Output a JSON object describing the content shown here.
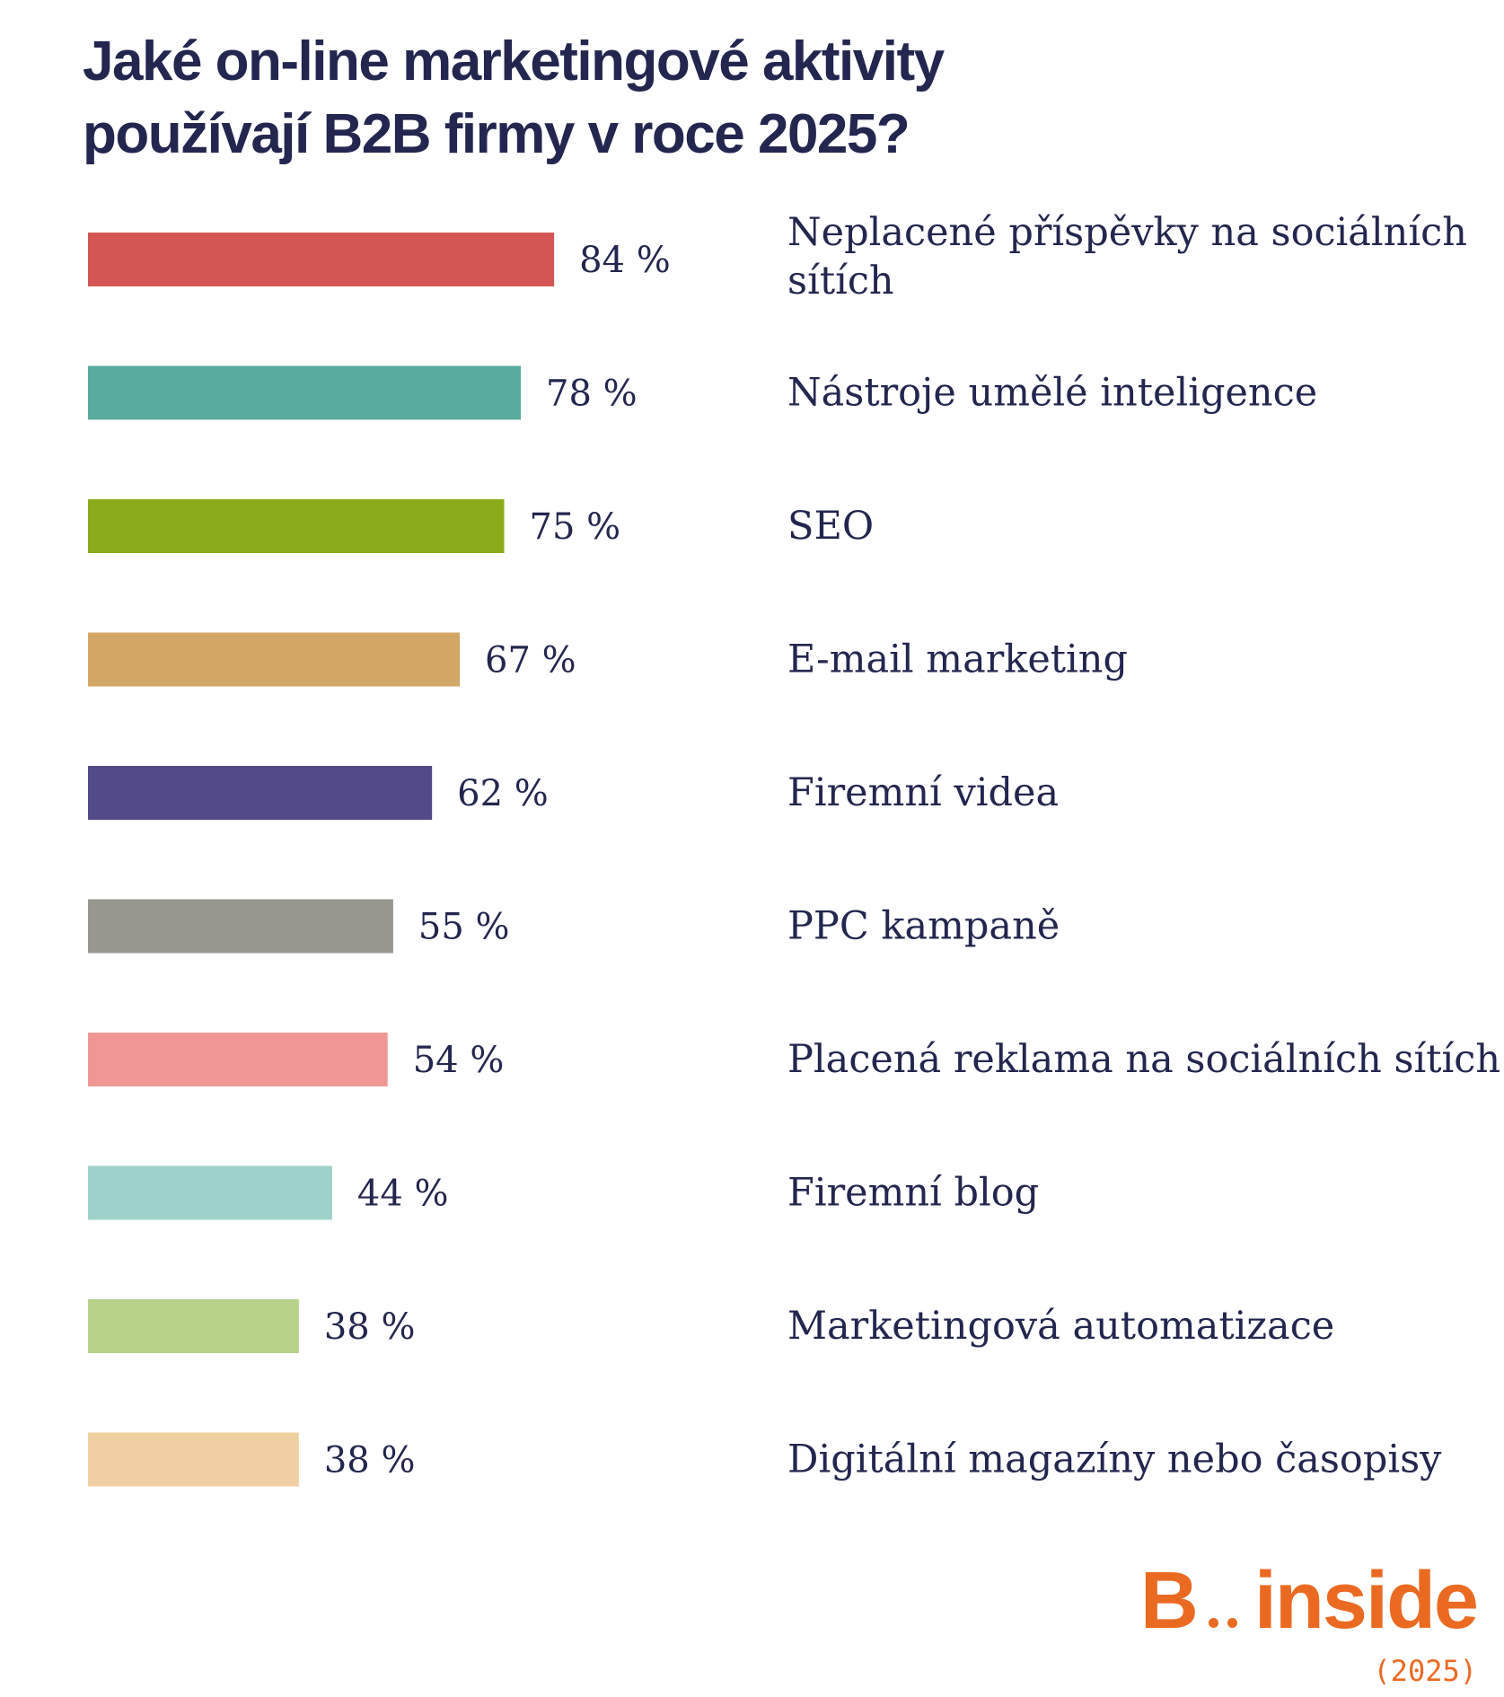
{
  "title_lines": [
    "Jaké on-line marketingové aktivity",
    "používají B2B firmy v roce 2025?"
  ],
  "brand": {
    "name_left": "B",
    "name_right": "inside",
    "year": "(2025)",
    "color": "#ea6a22"
  },
  "chart_data": {
    "type": "bar",
    "orientation": "horizontal",
    "title": "Jaké on-line marketingové aktivity používají B2B firmy v roce 2025?",
    "unit": "%",
    "categories": [
      "Neplacené příspěvky na sociálních sítích",
      "Nástroje umělé inteligence",
      "SEO",
      "E-mail marketing",
      "Firemní videa",
      "PPC kampaně",
      "Placená reklama na sociálních sítích",
      "Firemní blog",
      "Marketingová automatizace",
      "Digitální magazíny nebo časopisy"
    ],
    "values": [
      84,
      78,
      75,
      67,
      62,
      55,
      54,
      44,
      38,
      38
    ],
    "value_labels": [
      "84 %",
      "78 %",
      "75 %",
      "67 %",
      "62 %",
      "55 %",
      "54 %",
      "44 %",
      "38 %",
      "38 %"
    ],
    "colors": [
      "#d35654",
      "#5aab9f",
      "#8aab1b",
      "#d2a766",
      "#534a8a",
      "#979790",
      "#f09796",
      "#9ed2c8",
      "#b7d38b",
      "#f0d0a2"
    ],
    "label_lines": [
      [
        "Neplacené příspěvky na sociálních",
        "sítích"
      ],
      [
        "Nástroje umělé inteligence"
      ],
      [
        "SEO"
      ],
      [
        "E-mail marketing"
      ],
      [
        "Firemní videa"
      ],
      [
        "PPC kampaně"
      ],
      [
        "Placená reklama na sociálních sítích"
      ],
      [
        "Firemní blog"
      ],
      [
        "Marketingová automatizace"
      ],
      [
        "Digitální magazíny nebo časopisy"
      ]
    ],
    "xlim": [
      0,
      100
    ],
    "text_color": "#23264f",
    "grid": false,
    "legend": "none"
  }
}
